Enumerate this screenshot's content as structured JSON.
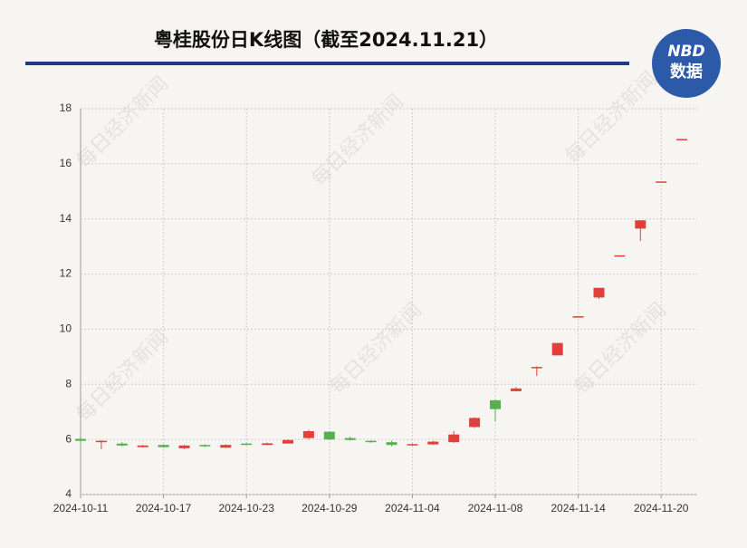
{
  "chart_data": {
    "type": "candlestick",
    "title": "粤桂股份日K线图（截至2024.11.21）",
    "categories": [
      "2024-10-11",
      null,
      null,
      null,
      "2024-10-17",
      null,
      null,
      null,
      "2024-10-23",
      null,
      null,
      null,
      "2024-10-29",
      null,
      null,
      null,
      "2024-11-04",
      null,
      null,
      null,
      "2024-11-08",
      null,
      null,
      null,
      "2024-11-14",
      null,
      null,
      null,
      "2024-11-20",
      null
    ],
    "open": [
      6.02,
      5.9,
      5.85,
      5.72,
      5.8,
      5.68,
      5.8,
      5.7,
      5.85,
      5.8,
      5.85,
      6.05,
      6.28,
      6.05,
      5.95,
      5.9,
      5.8,
      5.82,
      5.9,
      6.45,
      7.42,
      7.75,
      8.63,
      9.05,
      10.47,
      11.15,
      12.68,
      13.65,
      15.36,
      16.9
    ],
    "high": [
      6.1,
      5.97,
      5.9,
      5.8,
      5.82,
      5.8,
      5.82,
      5.82,
      5.87,
      5.88,
      6.0,
      6.35,
      6.3,
      6.1,
      5.97,
      5.95,
      5.85,
      5.95,
      6.3,
      6.8,
      7.45,
      7.9,
      8.65,
      9.5,
      10.47,
      11.5,
      12.68,
      13.95,
      15.36,
      16.9
    ],
    "low": [
      5.9,
      5.65,
      5.75,
      5.7,
      5.7,
      5.65,
      5.72,
      5.7,
      5.8,
      5.8,
      5.85,
      6.0,
      5.98,
      5.95,
      5.88,
      5.75,
      5.78,
      5.8,
      5.88,
      6.42,
      6.65,
      7.75,
      8.3,
      9.05,
      10.47,
      11.1,
      12.68,
      13.2,
      15.36,
      16.9
    ],
    "close": [
      5.95,
      5.95,
      5.78,
      5.78,
      5.72,
      5.78,
      5.75,
      5.8,
      5.82,
      5.86,
      5.98,
      6.3,
      6.0,
      5.98,
      5.9,
      5.8,
      5.83,
      5.92,
      6.18,
      6.78,
      7.1,
      7.85,
      8.63,
      9.5,
      10.47,
      11.5,
      12.68,
      13.95,
      15.36,
      16.9
    ],
    "up_color": "#e0403c",
    "down_color": "#55b04f",
    "ylim": [
      4,
      18
    ],
    "yticks": [
      4,
      6,
      8,
      10,
      12,
      14,
      16,
      18
    ],
    "grid": true
  },
  "logo": {
    "top": "NBD",
    "bottom": "数据"
  },
  "watermark": "每日经济新闻"
}
